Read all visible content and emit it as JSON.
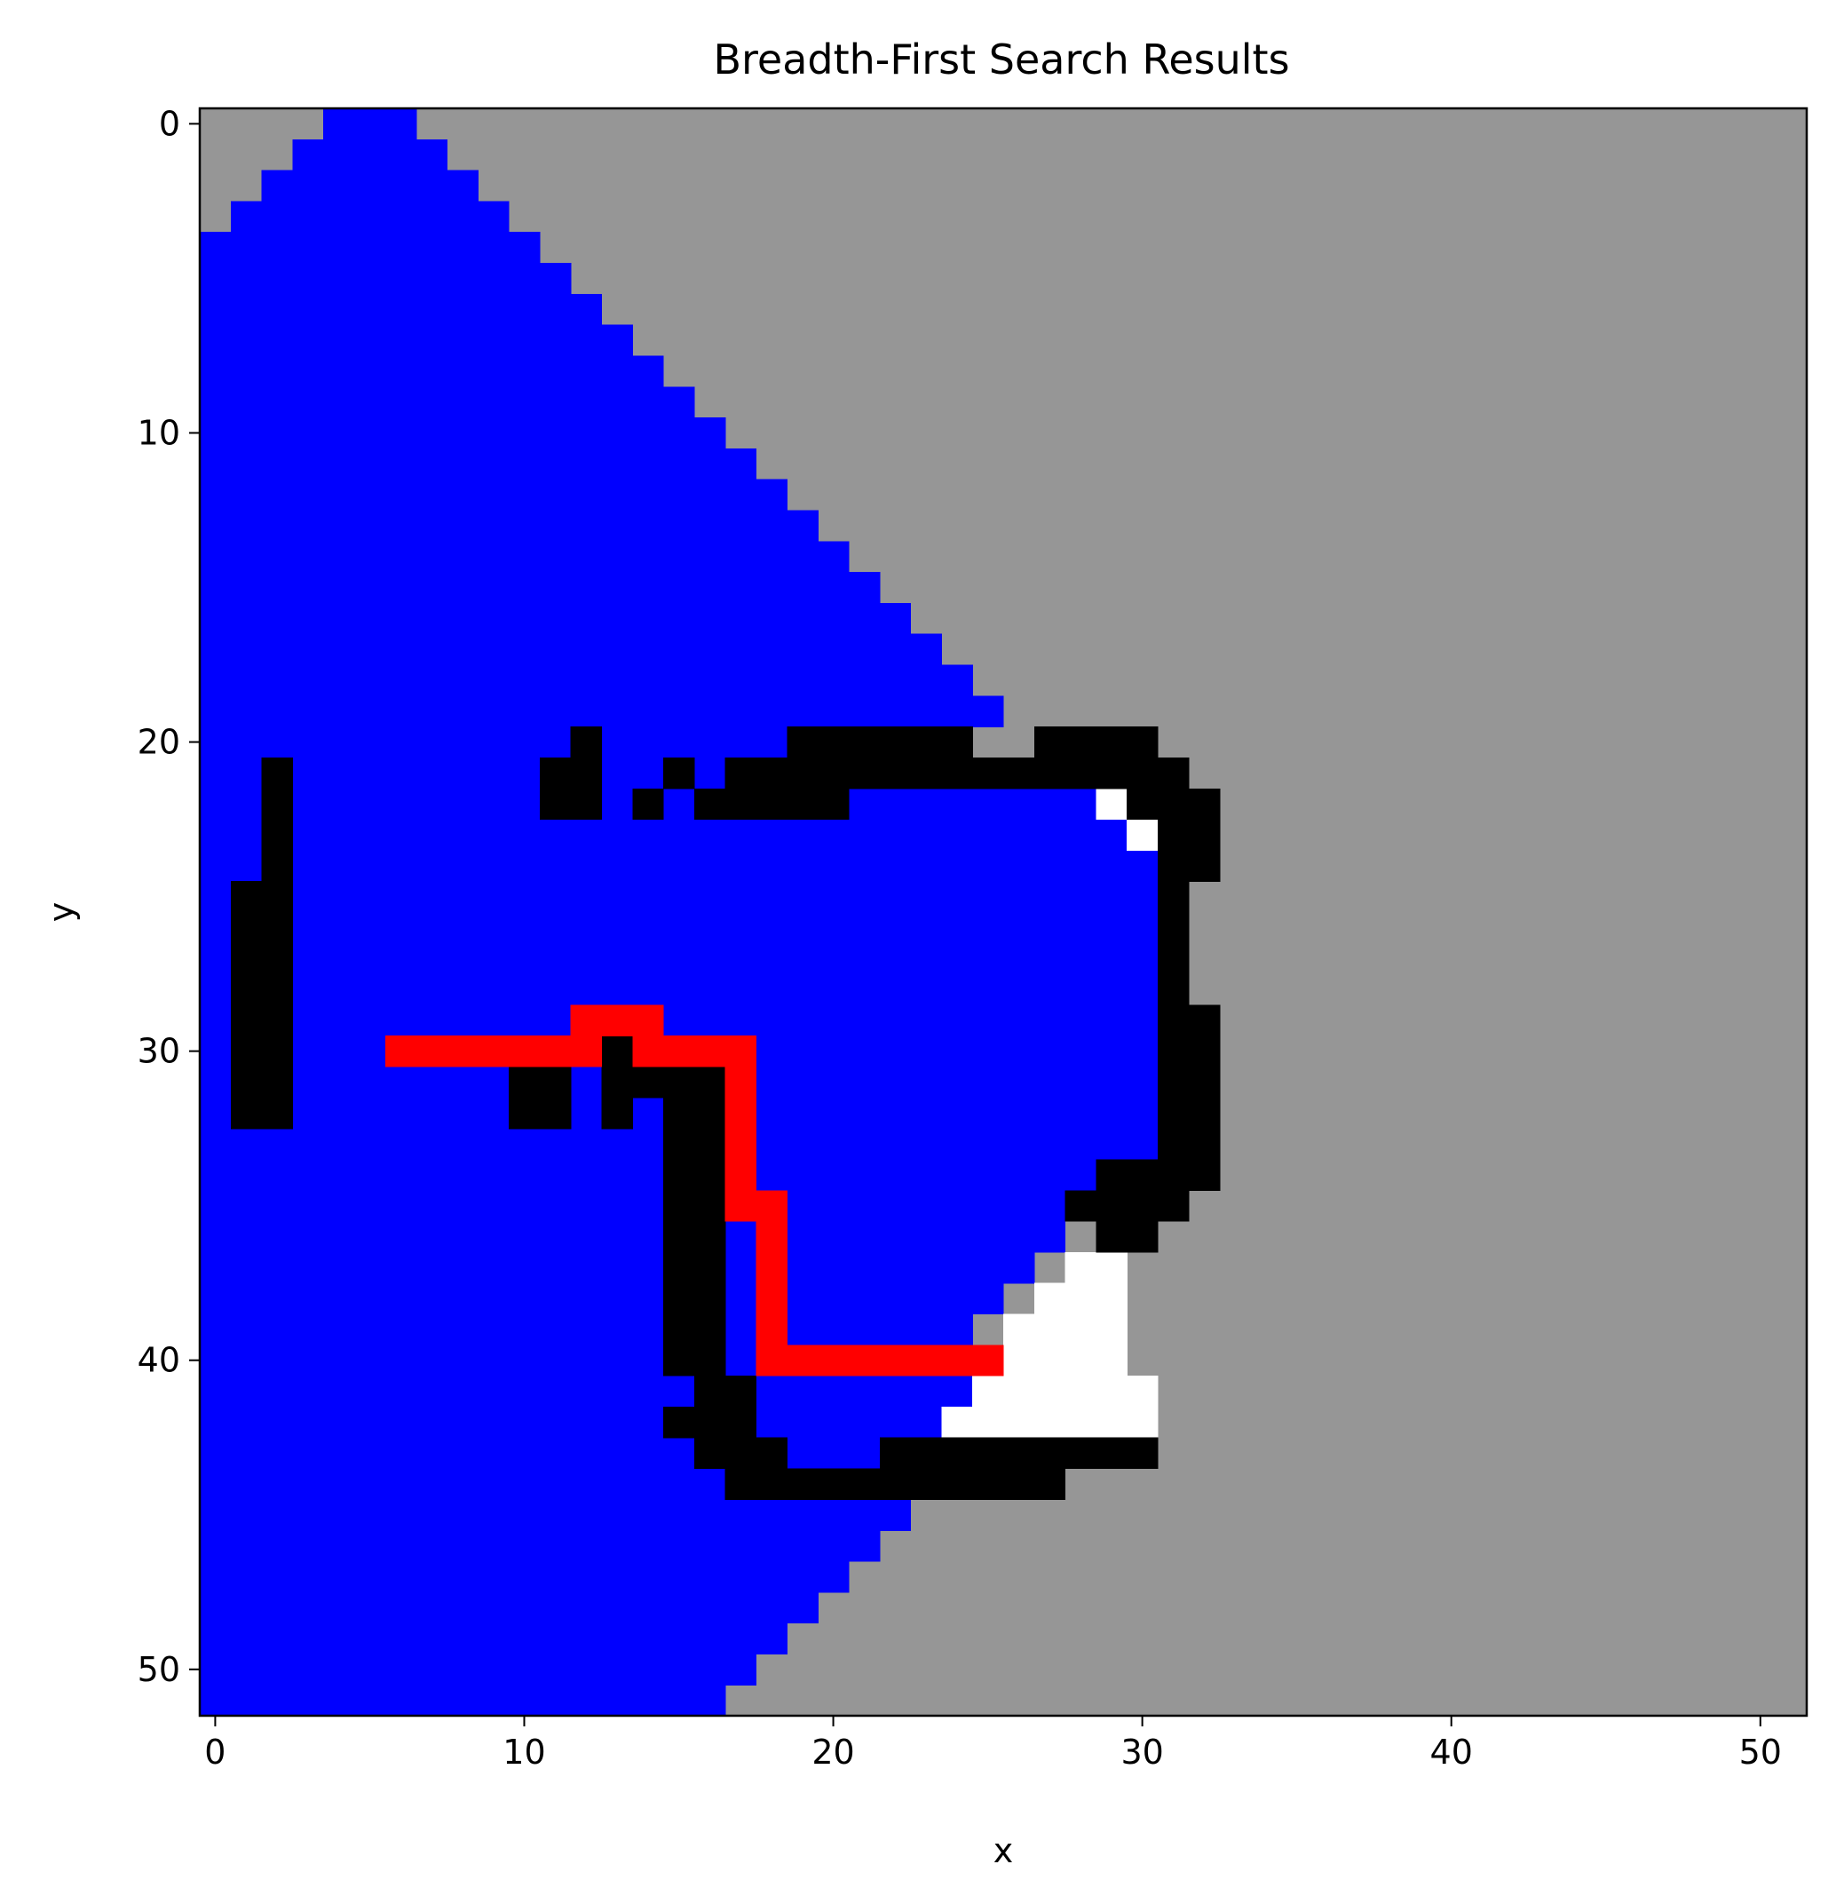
{
  "chart_data": {
    "type": "heatmap",
    "title": "Breadth-First Search Results",
    "xlabel": "x",
    "ylabel": "y",
    "xlim": [
      -0.5,
      51.5
    ],
    "ylim": [
      51.5,
      -0.5
    ],
    "y_inverted": true,
    "grid": false,
    "legend": "none",
    "x_ticks": [
      0,
      10,
      20,
      30,
      40,
      50
    ],
    "y_ticks": [
      0,
      10,
      20,
      30,
      40,
      50
    ],
    "grid_size": [
      52,
      52
    ],
    "colors": {
      "unvisited": "#969696",
      "visited": "#0000ff",
      "obstacle": "#000000",
      "free_unreached": "#ffffff",
      "path": "#ff0000"
    },
    "background": "unvisited",
    "visited_region_rows": [
      [
        0,
        4,
        6
      ],
      [
        1,
        3,
        7
      ],
      [
        2,
        2,
        8
      ],
      [
        3,
        1,
        9
      ],
      [
        4,
        0,
        10
      ],
      [
        5,
        0,
        11
      ],
      [
        6,
        0,
        12
      ],
      [
        7,
        0,
        13
      ],
      [
        8,
        0,
        14
      ],
      [
        9,
        0,
        15
      ],
      [
        10,
        0,
        16
      ],
      [
        11,
        0,
        17
      ],
      [
        12,
        0,
        18
      ],
      [
        13,
        0,
        19
      ],
      [
        14,
        0,
        20
      ],
      [
        15,
        0,
        21
      ],
      [
        16,
        0,
        22
      ],
      [
        17,
        0,
        23
      ],
      [
        18,
        0,
        24
      ],
      [
        19,
        0,
        25
      ],
      [
        20,
        0,
        24
      ],
      [
        21,
        0,
        29
      ],
      [
        22,
        0,
        29
      ],
      [
        23,
        0,
        30
      ],
      [
        24,
        0,
        30
      ],
      [
        25,
        0,
        30
      ],
      [
        26,
        0,
        30
      ],
      [
        27,
        0,
        30
      ],
      [
        28,
        0,
        30
      ],
      [
        29,
        0,
        30
      ],
      [
        30,
        0,
        30
      ],
      [
        31,
        0,
        30
      ],
      [
        32,
        0,
        30
      ],
      [
        33,
        0,
        30
      ],
      [
        34,
        0,
        30
      ],
      [
        35,
        0,
        29
      ],
      [
        36,
        0,
        27
      ],
      [
        37,
        0,
        26
      ],
      [
        38,
        0,
        25
      ],
      [
        39,
        0,
        24
      ],
      [
        40,
        0,
        24
      ],
      [
        41,
        0,
        24
      ],
      [
        42,
        0,
        23
      ],
      [
        43,
        0,
        23
      ],
      [
        44,
        0,
        23
      ],
      [
        45,
        0,
        22
      ],
      [
        46,
        0,
        21
      ],
      [
        47,
        0,
        20
      ],
      [
        48,
        0,
        19
      ],
      [
        49,
        0,
        18
      ],
      [
        50,
        0,
        17
      ],
      [
        51,
        0,
        16
      ]
    ],
    "free_unreached_cells": [
      [
        29,
        22
      ],
      [
        30,
        23
      ],
      [
        28,
        37
      ],
      [
        29,
        37
      ],
      [
        27,
        38
      ],
      [
        28,
        38
      ],
      [
        29,
        38
      ],
      [
        26,
        39
      ],
      [
        27,
        39
      ],
      [
        28,
        39
      ],
      [
        29,
        39
      ],
      [
        26,
        40
      ],
      [
        27,
        40
      ],
      [
        28,
        40
      ],
      [
        29,
        40
      ],
      [
        25,
        41
      ],
      [
        26,
        41
      ],
      [
        27,
        41
      ],
      [
        28,
        41
      ],
      [
        29,
        41
      ],
      [
        30,
        41
      ],
      [
        24,
        42
      ],
      [
        25,
        42
      ],
      [
        26,
        42
      ],
      [
        27,
        42
      ],
      [
        28,
        42
      ],
      [
        29,
        42
      ],
      [
        30,
        42
      ]
    ],
    "obstacle_rects": [
      [
        19,
        20,
        24,
        20
      ],
      [
        27,
        20,
        30,
        20
      ],
      [
        12,
        20,
        12,
        21
      ],
      [
        11,
        21,
        12,
        22
      ],
      [
        15,
        21,
        15,
        21
      ],
      [
        17,
        21,
        31,
        21
      ],
      [
        14,
        22,
        14,
        22
      ],
      [
        16,
        22,
        20,
        22
      ],
      [
        30,
        22,
        32,
        22
      ],
      [
        31,
        23,
        32,
        24
      ],
      [
        31,
        25,
        31,
        28
      ],
      [
        31,
        29,
        32,
        34
      ],
      [
        29,
        34,
        30,
        34
      ],
      [
        28,
        35,
        31,
        35
      ],
      [
        29,
        36,
        30,
        36
      ],
      [
        2,
        21,
        2,
        24
      ],
      [
        1,
        25,
        2,
        32
      ],
      [
        10,
        31,
        11,
        32
      ],
      [
        13,
        30,
        13,
        32
      ],
      [
        14,
        31,
        14,
        31
      ],
      [
        15,
        31,
        16,
        40
      ],
      [
        16,
        41,
        17,
        41
      ],
      [
        15,
        42,
        17,
        42
      ],
      [
        16,
        43,
        18,
        43
      ],
      [
        17,
        44,
        27,
        44
      ],
      [
        22,
        43,
        30,
        43
      ]
    ],
    "path_cells": [
      [
        6,
        30
      ],
      [
        7,
        30
      ],
      [
        8,
        30
      ],
      [
        9,
        30
      ],
      [
        10,
        30
      ],
      [
        11,
        30
      ],
      [
        12,
        30
      ],
      [
        12,
        29
      ],
      [
        13,
        29
      ],
      [
        14,
        29
      ],
      [
        14,
        30
      ],
      [
        15,
        30
      ],
      [
        16,
        30
      ],
      [
        17,
        30
      ],
      [
        17,
        31
      ],
      [
        17,
        32
      ],
      [
        17,
        33
      ],
      [
        17,
        34
      ],
      [
        17,
        35
      ],
      [
        18,
        35
      ],
      [
        18,
        36
      ],
      [
        18,
        37
      ],
      [
        18,
        38
      ],
      [
        18,
        39
      ],
      [
        18,
        40
      ],
      [
        19,
        40
      ],
      [
        20,
        40
      ],
      [
        21,
        40
      ],
      [
        22,
        40
      ],
      [
        23,
        40
      ],
      [
        24,
        40
      ],
      [
        25,
        40
      ]
    ]
  }
}
